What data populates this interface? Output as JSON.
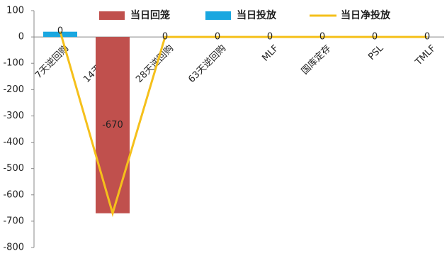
{
  "chart_data": {
    "type": "bar-line",
    "categories": [
      "7天逆回购",
      "14天逆回购",
      "28天逆回购",
      "63天逆回购",
      "MLF",
      "国库定存",
      "PSL",
      "TMLF"
    ],
    "series": [
      {
        "name": "当日回笼",
        "type": "bar",
        "color": "#c0504d",
        "values": [
          0,
          -670,
          0,
          0,
          0,
          0,
          0,
          0
        ],
        "value_labels": [
          "0",
          "-670",
          null,
          null,
          null,
          null,
          null,
          null
        ]
      },
      {
        "name": "当日投放",
        "type": "bar",
        "color": "#1aa7e0",
        "values": [
          20,
          0,
          0,
          0,
          0,
          0,
          0,
          0
        ]
      },
      {
        "name": "当日净投放",
        "type": "line",
        "color": "#f5c01b",
        "values": [
          20,
          -670,
          0,
          0,
          0,
          0,
          0,
          0
        ],
        "value_labels": [
          null,
          null,
          "0",
          "0",
          "0",
          "0",
          "0",
          "0"
        ]
      }
    ],
    "ylim": [
      -800,
      100
    ],
    "yticks": [
      -800,
      -700,
      -600,
      -500,
      -400,
      -300,
      -200,
      -100,
      0,
      100
    ]
  }
}
